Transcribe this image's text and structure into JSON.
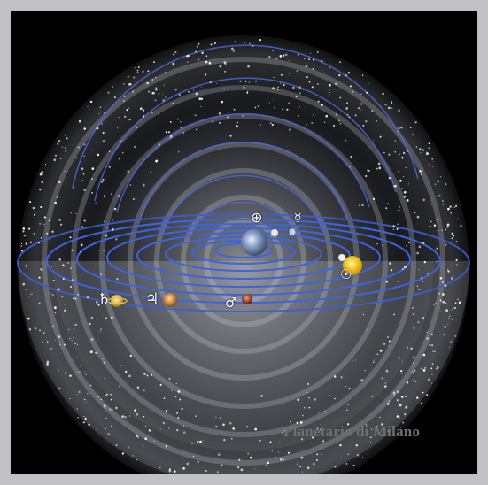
{
  "credit": {
    "text": "Planetario di Milano"
  },
  "symbols": {
    "earth_cross": "⊕",
    "mercury": "☿",
    "sun": "☉",
    "saturn": "♄",
    "jupiter": "♃",
    "mars": "♂"
  },
  "colors": {
    "frame": "#c1c1c5",
    "background": "#000000",
    "orbit_blue": "#3a5bd9",
    "sphere_glow": "#d8dde8",
    "sun": "#f4c01a"
  }
}
